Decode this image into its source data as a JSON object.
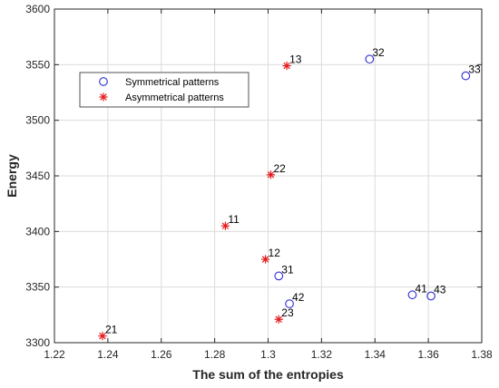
{
  "chart_data": {
    "type": "scatter",
    "title": "",
    "xlabel": "The sum of the entropies",
    "ylabel": "Energy",
    "xlim": [
      1.22,
      1.38
    ],
    "ylim": [
      3300,
      3600
    ],
    "xticks": [
      "1.22",
      "1.24",
      "1.26",
      "1.28",
      "1.3",
      "1.32",
      "1.34",
      "1.36",
      "1.38"
    ],
    "yticks": [
      "3300",
      "3350",
      "3400",
      "3450",
      "3500",
      "3550",
      "3600"
    ],
    "grid": true,
    "legend_position": "upper-left",
    "series": [
      {
        "name": "Symmetrical patterns",
        "marker": "circle",
        "color": "#2b2bd6",
        "points": [
          {
            "x": 1.338,
            "y": 3555,
            "label": "32"
          },
          {
            "x": 1.374,
            "y": 3540,
            "label": "33"
          },
          {
            "x": 1.304,
            "y": 3360,
            "label": "31"
          },
          {
            "x": 1.308,
            "y": 3335,
            "label": "42"
          },
          {
            "x": 1.354,
            "y": 3343,
            "label": "41"
          },
          {
            "x": 1.361,
            "y": 3342,
            "label": "43"
          }
        ]
      },
      {
        "name": "Asymmetrical patterns",
        "marker": "asterisk",
        "color": "#e41a1c",
        "points": [
          {
            "x": 1.307,
            "y": 3549,
            "label": "13"
          },
          {
            "x": 1.301,
            "y": 3451,
            "label": "22"
          },
          {
            "x": 1.284,
            "y": 3405,
            "label": "11"
          },
          {
            "x": 1.299,
            "y": 3375,
            "label": "12"
          },
          {
            "x": 1.304,
            "y": 3321,
            "label": "23"
          },
          {
            "x": 1.238,
            "y": 3306,
            "label": "21"
          }
        ]
      }
    ]
  }
}
